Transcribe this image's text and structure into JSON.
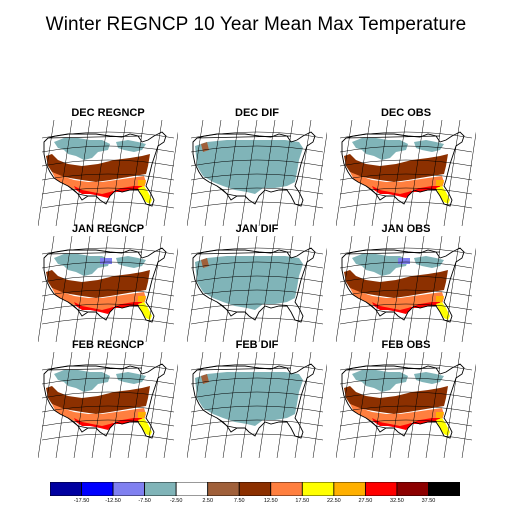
{
  "title": "Winter REGNCP 10 Year Mean Max Temperature",
  "panels": [
    {
      "label": "DEC REGNCP",
      "kind": "model"
    },
    {
      "label": "DEC DIF",
      "kind": "dif"
    },
    {
      "label": "DEC OBS",
      "kind": "obs"
    },
    {
      "label": "JAN REGNCP",
      "kind": "model"
    },
    {
      "label": "JAN DIF",
      "kind": "dif"
    },
    {
      "label": "JAN OBS",
      "kind": "obs"
    },
    {
      "label": "FEB REGNCP",
      "kind": "model"
    },
    {
      "label": "FEB DIF",
      "kind": "dif"
    },
    {
      "label": "FEB OBS",
      "kind": "obs"
    }
  ],
  "colorbar": {
    "colors": [
      "#0000a0",
      "#0000ff",
      "#8080f0",
      "#80b4b8",
      "#ffffff",
      "#a0603a",
      "#8c3000",
      "#ff7f3f",
      "#ffff00",
      "#ffb000",
      "#ff0000",
      "#8c0000",
      "#000000"
    ],
    "ticks": [
      "-17.50",
      "-12.50",
      "-7.50",
      "-2.50",
      "2.50",
      "7.50",
      "12.50",
      "17.50",
      "22.50",
      "27.50",
      "32.50",
      "37.50"
    ]
  }
}
